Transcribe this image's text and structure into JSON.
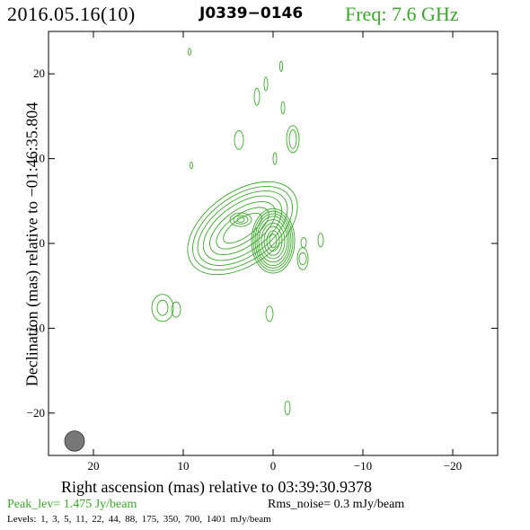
{
  "chart_data": {
    "type": "contour",
    "title": {
      "date": "2016.05.16(10)",
      "source": "J0339−0146",
      "frequency": "Freq: 7.6 GHz"
    },
    "xlabel": "Right ascension (mas) relative to 03:39:30.9378",
    "ylabel": "Declination (mas) relative to −01:46:35.804",
    "xlim": [
      25,
      -25
    ],
    "ylim": [
      -25,
      25
    ],
    "xticks": [
      20,
      10,
      0,
      -10,
      -20
    ],
    "yticks": [
      20,
      10,
      0,
      -10,
      -20
    ],
    "xtick_labels": [
      "20",
      "10",
      "0",
      "−10",
      "−20"
    ],
    "ytick_labels": [
      "20",
      "10",
      "0",
      "−10",
      "−20"
    ],
    "peak_text": "Peak_lev=  1.475 Jy/beam",
    "rms_text": "Rms_noise=  0.3 mJy/beam",
    "levels_text": "Levels:   1,   3,   5,  11,  22,  44,  88, 175, 350, 700, 1401 mJy/beam",
    "levels": [
      1,
      3,
      5,
      11,
      22,
      44,
      88,
      175,
      350,
      700,
      1401
    ],
    "level_unit": "mJy/beam",
    "peak_jy_per_beam": 1.475,
    "rms_noise_mjy_per_beam": 0.3,
    "contour_color": "#3aa829",
    "beam": {
      "x": 22.1,
      "y": -23.3,
      "major": 2.4,
      "minor": 1.1,
      "pa_deg": 0,
      "color": "#777777"
    },
    "components": [
      {
        "name": "core",
        "x": 0.0,
        "y": 0.3,
        "rx": [
          0.4,
          0.7,
          1.0,
          1.3,
          1.6,
          1.8,
          2.0,
          2.2,
          2.4
        ],
        "ry": [
          0.8,
          1.2,
          1.7,
          2.1,
          2.5,
          2.9,
          3.2,
          3.5,
          3.8
        ]
      },
      {
        "name": "jet-knot",
        "x": 3.6,
        "y": 2.8,
        "rx": [
          0.4,
          0.8,
          1.2
        ],
        "ry": [
          0.3,
          0.5,
          0.8
        ]
      },
      {
        "name": "east-blob",
        "x": 12.3,
        "y": -7.6,
        "rx": [
          0.6,
          1.2
        ],
        "ry": [
          0.9,
          1.6
        ]
      },
      {
        "name": "east-small",
        "x": 10.8,
        "y": -7.8,
        "rx": [
          0.5
        ],
        "ry": [
          0.9
        ]
      },
      {
        "name": "south-spot",
        "x": 0.4,
        "y": -8.3,
        "rx": [
          0.4
        ],
        "ry": [
          0.9
        ]
      },
      {
        "name": "far-south-spot",
        "x": -1.6,
        "y": -19.4,
        "rx": [
          0.3
        ],
        "ry": [
          0.8
        ]
      },
      {
        "name": "right-spot-1",
        "x": -3.3,
        "y": -1.8,
        "rx": [
          0.4,
          0.6
        ],
        "ry": [
          0.7,
          1.3
        ]
      },
      {
        "name": "right-spot-2",
        "x": -3.4,
        "y": 0.1,
        "rx": [
          0.3
        ],
        "ry": [
          0.6
        ]
      },
      {
        "name": "right-spot-3",
        "x": -5.3,
        "y": 0.4,
        "rx": [
          0.3
        ],
        "ry": [
          0.8
        ]
      },
      {
        "name": "north-1",
        "x": -2.2,
        "y": 12.3,
        "rx": [
          0.4,
          0.7
        ],
        "ry": [
          1.1,
          1.6
        ]
      },
      {
        "name": "north-2",
        "x": 3.8,
        "y": 12.2,
        "rx": [
          0.5
        ],
        "ry": [
          1.1
        ]
      },
      {
        "name": "north-3",
        "x": 1.8,
        "y": 17.3,
        "rx": [
          0.3
        ],
        "ry": [
          1.0
        ]
      },
      {
        "name": "north-4",
        "x": 0.8,
        "y": 18.8,
        "rx": [
          0.2
        ],
        "ry": [
          0.8
        ]
      },
      {
        "name": "north-5",
        "x": -1.1,
        "y": 16.0,
        "rx": [
          0.2
        ],
        "ry": [
          0.7
        ]
      },
      {
        "name": "north-6",
        "x": -0.9,
        "y": 20.9,
        "rx": [
          0.15
        ],
        "ry": [
          0.6
        ]
      },
      {
        "name": "north-7",
        "x": 9.3,
        "y": 22.6,
        "rx": [
          0.15
        ],
        "ry": [
          0.4
        ]
      },
      {
        "name": "mid-spot",
        "x": 9.1,
        "y": 9.2,
        "rx": [
          0.15
        ],
        "ry": [
          0.4
        ]
      },
      {
        "name": "near-core-north",
        "x": -0.2,
        "y": 10.0,
        "rx": [
          0.2
        ],
        "ry": [
          0.7
        ]
      }
    ],
    "jet": {
      "name": "extended-jet",
      "center": {
        "x": 3.4,
        "y": 1.8
      },
      "direction_deg": -35,
      "length": [
        2.5,
        3.4,
        4.2,
        5.0,
        5.7,
        6.3,
        6.9
      ],
      "width": [
        1.1,
        1.6,
        2.2,
        2.8,
        3.3,
        3.8,
        4.3
      ]
    }
  }
}
